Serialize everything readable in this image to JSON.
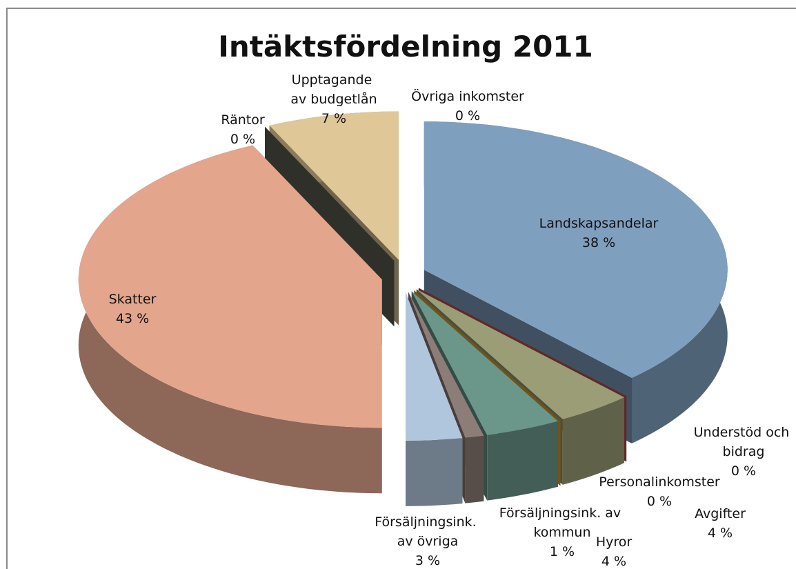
{
  "chart_data": {
    "type": "pie",
    "title": "Intäktsfördelning 2011",
    "categories": [
      "Landskapsandelar",
      "Understöd och bidrag",
      "Avgifter",
      "Personalinkomster",
      "Hyror",
      "Försäljningsink. av kommun",
      "Försäljningsink. av övriga",
      "Skatter",
      "Räntor",
      "Upptagande av budgetlån",
      "Övriga inkomster"
    ],
    "values": [
      38,
      0,
      4,
      0,
      4,
      1,
      3,
      43,
      0,
      7,
      0
    ],
    "value_labels": [
      "38 %",
      "0 %",
      "4 %",
      "0 %",
      "4 %",
      "1 %",
      "3 %",
      "43 %",
      "0 %",
      "7 %",
      "0 %"
    ],
    "colors": [
      "#7f9fbf",
      "#c0504d",
      "#9a9d76",
      "#e0a838",
      "#6a978a",
      "#8c7d78",
      "#b0c6dc",
      "#e3a68c",
      "#5d5f54",
      "#e0c797",
      "#d0d8e4"
    ]
  }
}
